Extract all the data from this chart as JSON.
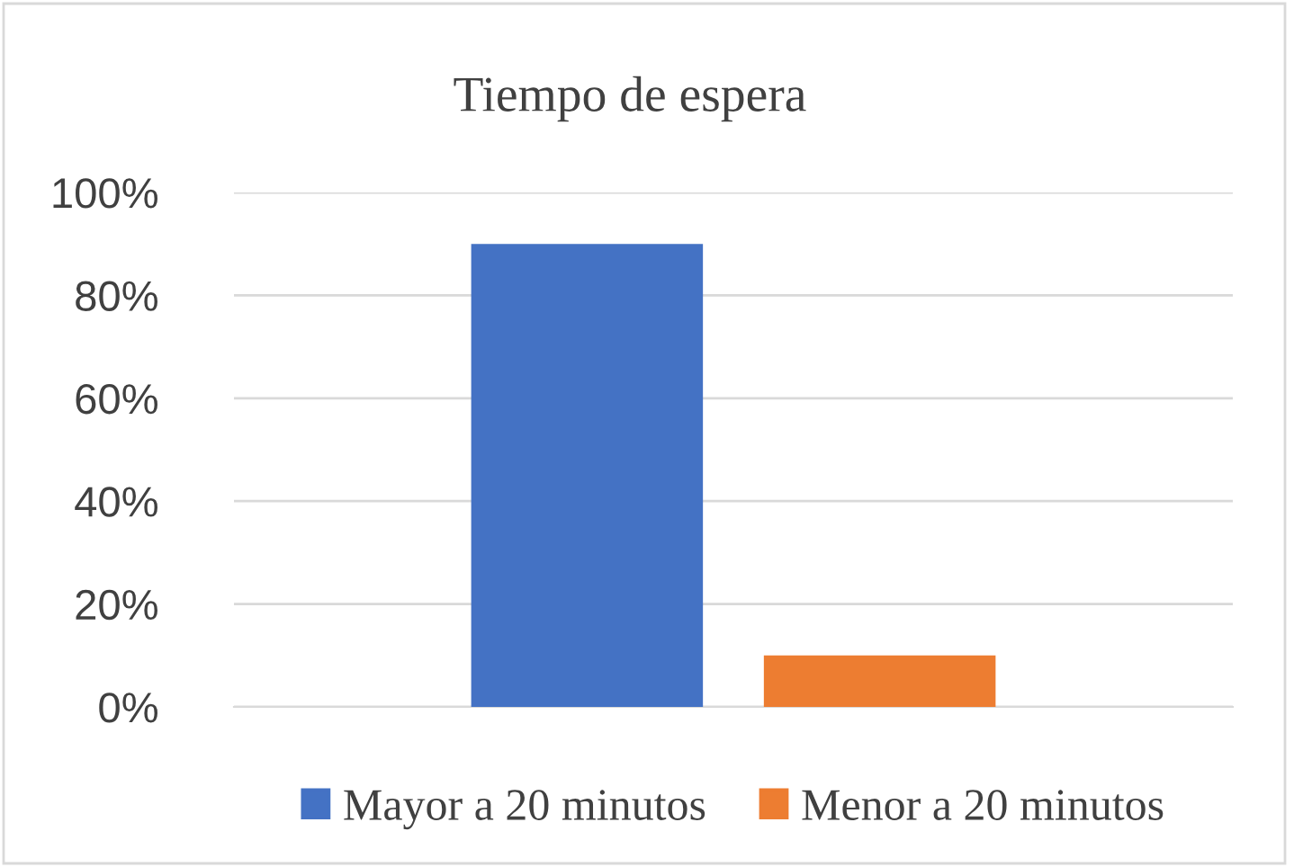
{
  "chart_data": {
    "type": "bar",
    "title": "Tiempo de espera",
    "categories": [
      null
    ],
    "series": [
      {
        "name": "Mayor a 20 minutos",
        "color": "#4472c4",
        "values": [
          90
        ]
      },
      {
        "name": "Menor a 20 minutos",
        "color": "#ed7d31",
        "values": [
          10
        ]
      }
    ],
    "ylim": [
      0,
      100
    ],
    "yticks": [
      {
        "value": 0,
        "label": "0%"
      },
      {
        "value": 20,
        "label": "20%"
      },
      {
        "value": 40,
        "label": "40%"
      },
      {
        "value": 60,
        "label": "60%"
      },
      {
        "value": 80,
        "label": "80%"
      },
      {
        "value": 100,
        "label": "100%"
      }
    ],
    "grid": "y",
    "legend": "bottom"
  }
}
